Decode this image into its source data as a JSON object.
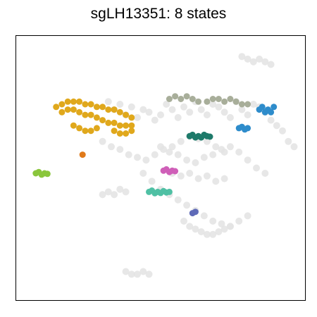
{
  "chart_data": {
    "type": "scatter",
    "title": "sgLH13351: 8 states",
    "xlabel": "",
    "ylabel": "",
    "xlim": [
      0,
      100
    ],
    "ylim": [
      0,
      100
    ],
    "grid": false,
    "legend": "none",
    "background_color": "#e3e3e3",
    "background_clusters": [
      {
        "name": "",
        "x": [
          32,
          34,
          36,
          38,
          40,
          42,
          44,
          46,
          48,
          50,
          52,
          54,
          56,
          58,
          60,
          62,
          64,
          66,
          68,
          70,
          72,
          74,
          76,
          78,
          80,
          82,
          84,
          86,
          88,
          90,
          92,
          94,
          96
        ],
        "y": [
          75,
          72,
          74,
          70,
          73,
          69,
          72,
          71,
          68,
          70,
          74,
          72,
          69,
          73,
          71,
          75,
          72,
          70,
          74,
          73,
          71,
          69,
          75,
          72,
          70,
          74,
          73,
          71,
          68,
          66,
          64,
          60,
          58
        ]
      },
      {
        "name": "",
        "x": [
          30,
          33,
          36,
          39,
          42,
          45,
          48,
          51,
          54,
          57,
          60,
          63,
          66,
          69,
          72
        ],
        "y": [
          60,
          58,
          57,
          55,
          54,
          53,
          55,
          57,
          58,
          60,
          62,
          61,
          60,
          58,
          56
        ]
      },
      {
        "name": "",
        "x": [
          50,
          53,
          56,
          59,
          62,
          65,
          68,
          71,
          74,
          77,
          80,
          83,
          86
        ],
        "y": [
          58,
          56,
          55,
          53,
          52,
          54,
          55,
          57,
          58,
          56,
          53,
          50,
          48
        ]
      },
      {
        "name": "",
        "x": [
          44,
          47,
          50,
          53,
          56,
          59,
          62,
          65,
          68,
          71,
          74,
          77,
          80
        ],
        "y": [
          48,
          45,
          42,
          40,
          38,
          36,
          34,
          32,
          30,
          29,
          28,
          30,
          32
        ]
      },
      {
        "name": "",
        "x": [
          58,
          60,
          62,
          64,
          66,
          68,
          70,
          72,
          74
        ],
        "y": [
          30,
          28,
          27,
          26,
          25,
          25,
          26,
          27,
          28
        ]
      },
      {
        "name": "",
        "x": [
          30,
          32,
          34,
          36,
          38
        ],
        "y": [
          40,
          41,
          40,
          42,
          41
        ]
      },
      {
        "name": "",
        "x": [
          78,
          80,
          82,
          84,
          86,
          88
        ],
        "y": [
          92,
          91,
          90,
          91,
          90,
          89
        ]
      },
      {
        "name": "",
        "x": [
          38,
          40,
          42,
          44,
          46
        ],
        "y": [
          11,
          10,
          10,
          11,
          10
        ]
      },
      {
        "name": "",
        "x": [
          54,
          57,
          60,
          63,
          66,
          69,
          72
        ],
        "y": [
          48,
          47,
          48,
          46,
          47,
          45,
          46
        ]
      }
    ],
    "series": [
      {
        "name": "",
        "color": "#e0a81c",
        "x": [
          14,
          16,
          18,
          20,
          22,
          24,
          26,
          28,
          30,
          32,
          34,
          36,
          38,
          40,
          16,
          18,
          20,
          22,
          24,
          26,
          28,
          30,
          32,
          34,
          36,
          38,
          40,
          20,
          22,
          24,
          26,
          28,
          34,
          36,
          38,
          40
        ],
        "y": [
          73,
          74,
          75,
          75,
          75,
          74,
          74,
          73,
          73,
          72,
          72,
          71,
          70,
          69,
          71,
          72,
          72,
          71,
          70,
          70,
          69,
          68,
          67,
          67,
          66,
          66,
          66,
          66,
          65,
          64,
          64,
          65,
          64,
          63,
          63,
          64
        ]
      },
      {
        "name": "",
        "color": "#a8ae9a",
        "x": [
          53,
          55,
          57,
          59,
          61,
          63,
          66,
          68,
          70,
          72,
          74,
          76,
          78,
          80
        ],
        "y": [
          76,
          77,
          76,
          77,
          76,
          75,
          75,
          76,
          76,
          75,
          76,
          75,
          74,
          74
        ]
      },
      {
        "name": "",
        "color": "#2e8ccb",
        "x": [
          84,
          85,
          86,
          87,
          88,
          89
        ],
        "y": [
          72,
          73,
          71,
          72,
          71,
          73
        ]
      },
      {
        "name": "",
        "color": "#2e8ccb",
        "x": [
          77,
          78,
          79,
          80
        ],
        "y": [
          65,
          65.5,
          64.5,
          65
        ]
      },
      {
        "name": "",
        "color": "#1e7a6a",
        "x": [
          60,
          61,
          62,
          63,
          64,
          65,
          66,
          67
        ],
        "y": [
          62,
          62.5,
          61.5,
          62,
          61.5,
          62.5,
          62,
          61.8
        ]
      },
      {
        "name": "",
        "color": "#e07a1a",
        "x": [
          23.1
        ],
        "y": [
          55
        ]
      },
      {
        "name": "",
        "color": "#8ac63c",
        "x": [
          7,
          8,
          9,
          10,
          11
        ],
        "y": [
          48,
          48.5,
          47.5,
          48,
          47.8
        ]
      },
      {
        "name": "",
        "color": "#cf5fb8",
        "x": [
          51,
          52,
          53,
          54,
          55
        ],
        "y": [
          49,
          49.5,
          48.5,
          49,
          48.8
        ]
      },
      {
        "name": "",
        "color": "#4fc0a4",
        "x": [
          46,
          47,
          48,
          49,
          50,
          51,
          52,
          53
        ],
        "y": [
          41,
          41.5,
          40.5,
          41,
          40.6,
          41.3,
          40.8,
          41
        ]
      },
      {
        "name": "",
        "color": "#5f6bb8",
        "x": [
          61,
          62
        ],
        "y": [
          33,
          33.5
        ]
      }
    ]
  }
}
